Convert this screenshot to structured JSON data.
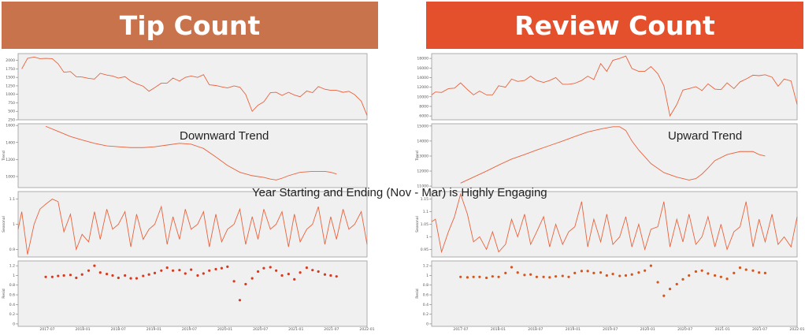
{
  "headers": {
    "left": "Tip Count",
    "right": "Review Count"
  },
  "overlay_text": "Year Starting and Ending (Nov - Mar) is Highly Engaging",
  "line_color": "#e8623c",
  "dot_color_left": "#d9391f",
  "dot_color_right": "#d4561f",
  "chart_data": [
    {
      "type": "line",
      "panel": "Tip Count",
      "x_ticks": [
        "2017-07",
        "2018-01",
        "2018-07",
        "2019-01",
        "2019-07",
        "2020-01",
        "2020-07",
        "2021-01",
        "2021-07",
        "2022-01"
      ],
      "x_range": [
        2017.2,
        2022.0
      ],
      "subplots": [
        {
          "kind": "observed",
          "ylabel": "",
          "yticks": [
            2000,
            1750,
            1500,
            1250,
            1000,
            750,
            500,
            250
          ],
          "ylim": [
            250,
            2200
          ],
          "x": [
            2017.25,
            2017.33,
            2017.42,
            2017.5,
            2017.58,
            2017.67,
            2017.75,
            2017.83,
            2017.92,
            2018.0,
            2018.08,
            2018.17,
            2018.25,
            2018.33,
            2018.42,
            2018.5,
            2018.58,
            2018.67,
            2018.75,
            2018.83,
            2018.92,
            2019.0,
            2019.08,
            2019.17,
            2019.25,
            2019.33,
            2019.42,
            2019.5,
            2019.58,
            2019.67,
            2019.75,
            2019.83,
            2019.92,
            2020.0,
            2020.08,
            2020.17,
            2020.25,
            2020.33,
            2020.42,
            2020.5,
            2020.58,
            2020.67,
            2020.75,
            2020.83,
            2020.92,
            2021.0,
            2021.08,
            2021.17,
            2021.25,
            2021.33,
            2021.42,
            2021.5,
            2021.58,
            2021.67,
            2021.75,
            2021.83,
            2021.92,
            2022.0
          ],
          "y": [
            1750,
            2060,
            2100,
            2050,
            2060,
            2050,
            1900,
            1650,
            1670,
            1520,
            1510,
            1470,
            1450,
            1620,
            1570,
            1540,
            1480,
            1520,
            1390,
            1310,
            1240,
            1090,
            1200,
            1330,
            1330,
            1480,
            1390,
            1500,
            1540,
            1500,
            1580,
            1280,
            1260,
            1220,
            1190,
            1250,
            1210,
            1000,
            500,
            680,
            780,
            1050,
            1060,
            970,
            1060,
            980,
            930,
            1100,
            1050,
            1230,
            1150,
            1120,
            1120,
            1060,
            1090,
            990,
            800,
            380
          ]
        },
        {
          "kind": "trend",
          "ylabel": "Trend",
          "yticks": [
            1600,
            1400,
            1200,
            1000
          ],
          "ylim": [
            870,
            1620
          ],
          "x": [
            2017.58,
            2017.75,
            2017.92,
            2018.08,
            2018.25,
            2018.42,
            2018.58,
            2018.75,
            2018.92,
            2019.08,
            2019.25,
            2019.42,
            2019.58,
            2019.75,
            2019.92,
            2020.08,
            2020.25,
            2020.42,
            2020.58,
            2020.67,
            2020.75,
            2020.83,
            2020.92,
            2021.08,
            2021.25,
            2021.42,
            2021.5,
            2021.58
          ],
          "y": [
            1590,
            1530,
            1470,
            1430,
            1390,
            1360,
            1350,
            1340,
            1340,
            1350,
            1370,
            1390,
            1380,
            1330,
            1230,
            1130,
            1050,
            1010,
            990,
            970,
            960,
            980,
            1010,
            1050,
            1060,
            1060,
            1050,
            1030
          ]
        },
        {
          "kind": "seasonal",
          "ylabel": "Seasonal",
          "yticks": [
            1.1,
            1.0,
            0.9
          ],
          "ylim": [
            0.87,
            1.13
          ],
          "x": [
            2017.2,
            2017.25,
            2017.33,
            2017.42,
            2017.5,
            2017.58,
            2017.67,
            2017.75,
            2017.83,
            2017.92,
            2018.0,
            2018.08,
            2018.17,
            2018.25,
            2018.33,
            2018.42,
            2018.5,
            2018.58,
            2018.67,
            2018.75,
            2018.83,
            2018.92,
            2019.0,
            2019.08,
            2019.17,
            2019.25,
            2019.33,
            2019.42,
            2019.5,
            2019.58,
            2019.67,
            2019.75,
            2019.83,
            2019.92,
            2020.0,
            2020.08,
            2020.17,
            2020.25,
            2020.33,
            2020.42,
            2020.5,
            2020.58,
            2020.67,
            2020.75,
            2020.83,
            2020.92,
            2021.0,
            2021.08,
            2021.17,
            2021.25,
            2021.33,
            2021.42,
            2021.5,
            2021.58,
            2021.67,
            2021.75,
            2021.83,
            2021.92,
            2022.0
          ],
          "y": [
            0.98,
            1.05,
            0.88,
            1.0,
            1.06,
            1.08,
            1.1,
            1.09,
            0.97,
            1.04,
            0.9,
            0.96,
            0.93,
            1.05,
            0.94,
            1.06,
            0.98,
            1.0,
            1.05,
            0.91,
            1.04,
            0.94,
            0.98,
            1.0,
            1.07,
            0.92,
            1.03,
            0.94,
            1.06,
            0.98,
            1.0,
            1.05,
            0.91,
            1.04,
            0.93,
            0.98,
            1.0,
            1.06,
            0.92,
            1.03,
            0.94,
            1.06,
            0.98,
            1.0,
            1.05,
            0.91,
            1.04,
            0.93,
            0.98,
            1.0,
            1.07,
            0.92,
            1.03,
            0.94,
            1.06,
            0.98,
            1.0,
            1.05,
            0.92
          ]
        },
        {
          "kind": "resid",
          "ylabel": "Resid",
          "yticks": [
            1.2,
            1.0,
            0.8,
            0.6,
            0.4,
            0.2,
            0.0
          ],
          "ylim": [
            -0.05,
            1.3
          ],
          "x": [
            2017.58,
            2017.67,
            2017.75,
            2017.83,
            2017.92,
            2018.0,
            2018.08,
            2018.17,
            2018.25,
            2018.33,
            2018.42,
            2018.5,
            2018.58,
            2018.67,
            2018.75,
            2018.83,
            2018.92,
            2019.0,
            2019.08,
            2019.17,
            2019.25,
            2019.33,
            2019.42,
            2019.5,
            2019.58,
            2019.67,
            2019.75,
            2019.83,
            2019.92,
            2020.0,
            2020.08,
            2020.17,
            2020.25,
            2020.33,
            2020.42,
            2020.5,
            2020.58,
            2020.67,
            2020.75,
            2020.83,
            2020.92,
            2021.0,
            2021.08,
            2021.17,
            2021.25,
            2021.33,
            2021.42,
            2021.5,
            2021.58
          ],
          "y": [
            0.97,
            0.97,
            0.99,
            1.0,
            1.01,
            0.95,
            1.02,
            1.1,
            1.2,
            1.06,
            1.03,
            1.0,
            0.95,
            1.0,
            0.94,
            0.94,
            0.99,
            1.02,
            1.05,
            1.1,
            1.16,
            1.1,
            1.11,
            1.04,
            1.12,
            1.0,
            1.04,
            1.1,
            1.13,
            1.15,
            1.18,
            0.88,
            0.49,
            0.82,
            0.94,
            1.08,
            1.15,
            1.17,
            1.1,
            1.0,
            1.03,
            0.92,
            1.06,
            1.16,
            1.11,
            1.08,
            1.02,
            1.0,
            0.98
          ]
        }
      ]
    },
    {
      "type": "line",
      "panel": "Review Count",
      "x_ticks": [
        "2017-07",
        "2018-01",
        "2018-07",
        "2019-01",
        "2019-07",
        "2020-01",
        "2020-07",
        "2021-01",
        "2021-07",
        "2022-01"
      ],
      "x_range": [
        2017.2,
        2022.0
      ],
      "subplots": [
        {
          "kind": "observed",
          "ylabel": "",
          "yticks": [
            18000,
            16000,
            14000,
            12000,
            10000,
            8000,
            6000
          ],
          "ylim": [
            5200,
            19000
          ],
          "x": [
            2017.2,
            2017.25,
            2017.33,
            2017.42,
            2017.5,
            2017.58,
            2017.67,
            2017.75,
            2017.83,
            2017.92,
            2018.0,
            2018.08,
            2018.17,
            2018.25,
            2018.33,
            2018.42,
            2018.5,
            2018.58,
            2018.67,
            2018.75,
            2018.83,
            2018.92,
            2019.0,
            2019.08,
            2019.17,
            2019.25,
            2019.33,
            2019.42,
            2019.5,
            2019.58,
            2019.67,
            2019.75,
            2019.83,
            2019.92,
            2020.0,
            2020.08,
            2020.17,
            2020.25,
            2020.33,
            2020.42,
            2020.5,
            2020.58,
            2020.67,
            2020.75,
            2020.83,
            2020.92,
            2021.0,
            2021.08,
            2021.17,
            2021.25,
            2021.33,
            2021.42,
            2021.5,
            2021.58,
            2021.67,
            2021.75,
            2021.83,
            2021.92,
            2022.0
          ],
          "y": [
            10400,
            11000,
            10900,
            11700,
            11800,
            12900,
            11500,
            10400,
            11200,
            10400,
            10400,
            12300,
            12000,
            13700,
            13200,
            13400,
            14300,
            13400,
            13000,
            13400,
            14000,
            12600,
            12600,
            12800,
            13400,
            14300,
            13600,
            16900,
            15300,
            17600,
            18000,
            18500,
            15900,
            15300,
            15300,
            16300,
            14800,
            12300,
            6000,
            8400,
            11400,
            11700,
            12100,
            11300,
            12700,
            11600,
            11500,
            12900,
            11700,
            13100,
            13700,
            14500,
            14400,
            14600,
            14100,
            12200,
            13700,
            13300,
            8400
          ]
        },
        {
          "kind": "trend",
          "ylabel": "Trend",
          "yticks": [
            15000,
            14000,
            13000,
            12000,
            11000
          ],
          "ylim": [
            10900,
            15150
          ],
          "x": [
            2017.58,
            2017.75,
            2017.92,
            2018.08,
            2018.25,
            2018.42,
            2018.58,
            2018.75,
            2018.92,
            2019.08,
            2019.25,
            2019.42,
            2019.58,
            2019.67,
            2019.75,
            2019.83,
            2019.92,
            2020.08,
            2020.25,
            2020.42,
            2020.58,
            2020.67,
            2020.75,
            2020.83,
            2020.92,
            2021.08,
            2021.25,
            2021.42,
            2021.5,
            2021.58
          ],
          "y": [
            11200,
            11600,
            12000,
            12400,
            12800,
            13100,
            13400,
            13700,
            14000,
            14300,
            14600,
            14800,
            14950,
            14950,
            14700,
            14000,
            13400,
            12500,
            11900,
            11600,
            11400,
            11500,
            11800,
            12200,
            12700,
            13100,
            13300,
            13300,
            13100,
            13000
          ]
        },
        {
          "kind": "seasonal",
          "ylabel": "Seasonal",
          "yticks": [
            1.15,
            1.1,
            1.05,
            1.0,
            0.95
          ],
          "ylim": [
            0.92,
            1.18
          ],
          "x": [
            2017.2,
            2017.25,
            2017.33,
            2017.42,
            2017.5,
            2017.58,
            2017.67,
            2017.75,
            2017.83,
            2017.92,
            2018.0,
            2018.08,
            2018.17,
            2018.25,
            2018.33,
            2018.42,
            2018.5,
            2018.58,
            2018.67,
            2018.75,
            2018.83,
            2018.92,
            2019.0,
            2019.08,
            2019.17,
            2019.25,
            2019.33,
            2019.42,
            2019.5,
            2019.58,
            2019.67,
            2019.75,
            2019.83,
            2019.92,
            2020.0,
            2020.08,
            2020.17,
            2020.25,
            2020.33,
            2020.42,
            2020.5,
            2020.58,
            2020.67,
            2020.75,
            2020.83,
            2020.92,
            2021.0,
            2021.08,
            2021.17,
            2021.25,
            2021.33,
            2021.42,
            2021.5,
            2021.58,
            2021.67,
            2021.75,
            2021.83,
            2021.92,
            2022.0
          ],
          "y": [
            1.06,
            1.07,
            0.94,
            1.02,
            1.08,
            1.17,
            1.09,
            0.98,
            1.0,
            0.95,
            1.02,
            0.94,
            0.97,
            1.07,
            1.0,
            1.09,
            0.97,
            1.02,
            1.08,
            0.96,
            1.05,
            0.97,
            1.02,
            1.04,
            1.14,
            0.96,
            1.07,
            0.98,
            1.09,
            0.97,
            1.0,
            1.08,
            0.96,
            1.05,
            0.95,
            1.03,
            1.04,
            1.14,
            0.96,
            1.07,
            0.98,
            1.09,
            0.97,
            1.0,
            1.08,
            0.96,
            1.05,
            0.95,
            1.02,
            1.04,
            1.14,
            0.96,
            1.07,
            0.98,
            1.09,
            0.97,
            1.0,
            0.96,
            1.08
          ]
        },
        {
          "kind": "resid",
          "ylabel": "Resid",
          "yticks": [
            1.2,
            1.0,
            0.8,
            0.6,
            0.4,
            0.2,
            0.0
          ],
          "ylim": [
            -0.05,
            1.3
          ],
          "x": [
            2017.58,
            2017.67,
            2017.75,
            2017.83,
            2017.92,
            2018.0,
            2018.08,
            2018.17,
            2018.25,
            2018.33,
            2018.42,
            2018.5,
            2018.58,
            2018.67,
            2018.75,
            2018.83,
            2018.92,
            2019.0,
            2019.08,
            2019.17,
            2019.25,
            2019.33,
            2019.42,
            2019.5,
            2019.58,
            2019.67,
            2019.75,
            2019.83,
            2019.92,
            2020.0,
            2020.08,
            2020.17,
            2020.25,
            2020.33,
            2020.42,
            2020.5,
            2020.58,
            2020.67,
            2020.75,
            2020.83,
            2020.92,
            2021.0,
            2021.08,
            2021.17,
            2021.25,
            2021.33,
            2021.42,
            2021.5,
            2021.58
          ],
          "y": [
            0.97,
            0.96,
            0.97,
            0.97,
            0.95,
            0.98,
            0.97,
            1.05,
            1.17,
            1.06,
            1.01,
            1.02,
            0.97,
            0.97,
            0.96,
            0.98,
            0.99,
            0.97,
            1.05,
            1.09,
            1.09,
            1.05,
            1.06,
            1.0,
            1.03,
            0.99,
            1.0,
            1.02,
            1.06,
            1.1,
            1.2,
            0.86,
            0.58,
            0.72,
            0.82,
            0.92,
            1.0,
            1.08,
            1.1,
            1.04,
            1.0,
            0.97,
            0.93,
            1.05,
            1.16,
            1.12,
            1.1,
            1.06,
            1.05
          ]
        }
      ]
    }
  ],
  "annotations": {
    "left_trend": "Downward Trend",
    "right_trend": "Upward Trend"
  }
}
